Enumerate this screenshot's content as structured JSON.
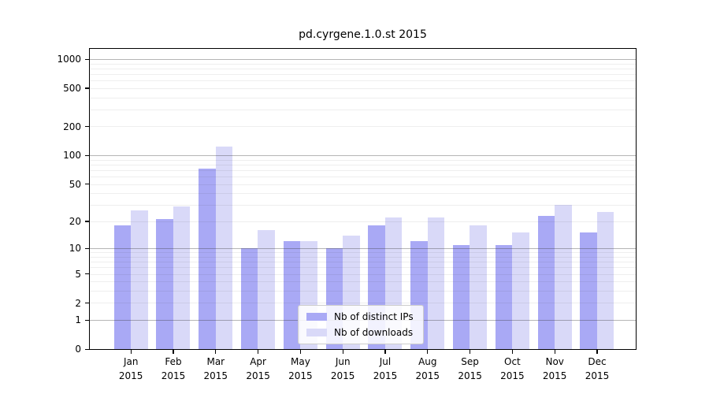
{
  "chart_data": {
    "type": "bar",
    "title": "pd.cyrgene.1.0.st 2015",
    "months": [
      "Jan",
      "Feb",
      "Mar",
      "Apr",
      "May",
      "Jun",
      "Jul",
      "Aug",
      "Sep",
      "Oct",
      "Nov",
      "Dec"
    ],
    "year": "2015",
    "series": [
      {
        "name": "Nb of distinct IPs",
        "color": "#a9a9f5",
        "values": [
          18,
          21,
          72,
          10,
          12,
          10,
          18,
          12,
          11,
          11,
          23,
          15
        ]
      },
      {
        "name": "Nb of downloads",
        "color": "#d9d9f8",
        "values": [
          26,
          29,
          124,
          16,
          12,
          14,
          22,
          22,
          18,
          15,
          30,
          25
        ]
      }
    ],
    "yscale": "log1p",
    "y_ticks": [
      0,
      1,
      2,
      5,
      10,
      20,
      50,
      100,
      200,
      500,
      1000
    ],
    "ylim": [
      0,
      1275
    ],
    "xlabel": "",
    "ylabel": "",
    "grid": "horizontal",
    "legend_position": "bottom-center",
    "background_color": "#ffffff",
    "axis_color": "#000000",
    "grid_major_color": "rgba(60,60,60,0.38)",
    "grid_minor_color": "rgba(60,60,60,0.085)"
  }
}
